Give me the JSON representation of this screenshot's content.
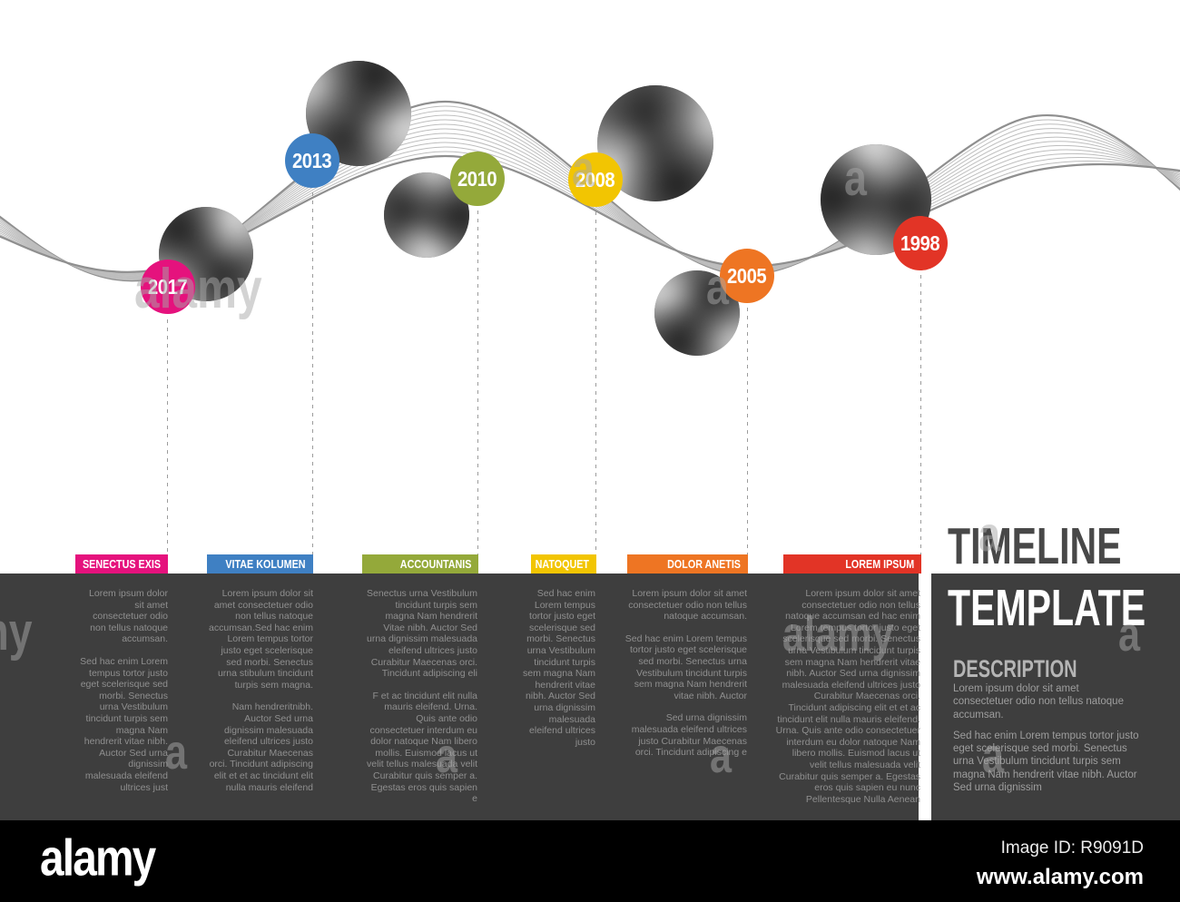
{
  "timeline": {
    "milestones": [
      {
        "year": "2017",
        "label": "SENECTUS EXIS",
        "color": "#e5127d",
        "paragraphs": [
          "Lorem ipsum dolor sit amet consectetuer odio non tellus natoque accumsan.",
          "Sed hac enim Lorem tempus tortor justo eget scelerisque sed morbi. Senectus urna Vestibulum tincidunt turpis sem magna Nam hendrerit vitae nibh. Auctor Sed urna dignissim malesuada eleifend ultrices just"
        ]
      },
      {
        "year": "2013",
        "label": "VITAE KOLUMEN",
        "color": "#3f80c3",
        "paragraphs": [
          "Lorem ipsum dolor sit amet consectetuer odio non tellus natoque accumsan.Sed hac enim Lorem tempus tortor justo eget scelerisque sed morbi. Senectus urna stibulum tincidunt turpis sem magna.",
          "Nam hendreritnibh. Auctor Sed urna dignissim malesuada eleifend ultrices justo Curabitur Maecenas orci. Tincidunt adipiscing elit et et ac tincidunt elit nulla mauris eleifend"
        ]
      },
      {
        "year": "2010",
        "label": "ACCOUNTANIS",
        "color": "#94a93a",
        "paragraphs": [
          "Senectus urna Vestibulum tincidunt turpis sem magna Nam hendrerit Vitae nibh. Auctor Sed urna dignissim malesuada eleifend ultrices justo Curabitur Maecenas orci. Tincidunt adipiscing eli",
          "F et ac tincidunt elit nulla mauris eleifend. Urna. Quis ante odio consectetuer interdum eu dolor natoque Nam libero mollis. Euismod lacus ut velit tellus malesuada velit Curabitur quis semper a. Egestas eros quis sapien e"
        ]
      },
      {
        "year": "2008",
        "label": "NATOQUET",
        "color": "#f2c502",
        "paragraphs": [
          "Sed hac enim Lorem tempus tortor justo eget scelerisque sed morbi. Senectus urna Vestibulum tincidunt turpis sem magna Nam hendrerit vitae nibh. Auctor Sed urna dignissim malesuada eleifend ultrices justo"
        ]
      },
      {
        "year": "2005",
        "label": "DOLOR ANETIS",
        "color": "#ee7523",
        "paragraphs": [
          "Lorem ipsum dolor sit amet consectetuer odio non tellus natoque accumsan.",
          "Sed hac enim Lorem tempus tortor justo eget scelerisque sed morbi. Senectus urna Vestibulum tincidunt turpis sem magna Nam hendrerit vitae nibh. Auctor",
          "Sed urna dignissim malesuada eleifend ultrices justo Curabitur Maecenas orci. Tincidunt adipiscing e"
        ]
      },
      {
        "year": "1998",
        "label": "LOREM IPSUM",
        "color": "#e23426",
        "paragraphs": [
          "Lorem ipsum dolor sit amet consectetuer odio non tellus natoque accumsan ed hac enim Lorem tempus tortor justo eget scelerisque sed morbi. Senectus urna Vestibulum tincidunt turpis sem magna Nam hendrerit vitae nibh. Auctor Sed urna dignissim malesuada eleifend ultrices justo Curabitur Maecenas orci. Tincidunt adipiscing elit et et ac tincidunt elit nulla mauris eleifend. Urna. Quis ante odio consectetuer interdum eu dolor natoque Nam libero mollis. Euismod lacus ut velit tellus malesuada velit Curabitur quis semper a. Egestas eros quis sapien eu nunc Pellentesque Nulla Aenean"
        ]
      }
    ]
  },
  "sidebar": {
    "title_line1": "TIMELINE",
    "title_line2": "TEMPLATE",
    "heading": "DESCRIPTION",
    "paragraphs": [
      "Lorem ipsum dolor sit amet consectetuer odio non tellus natoque accumsan.",
      "Sed hac enim Lorem tempus tortor justo eget scelerisque sed morbi. Senectus urna Vestibulum tincidunt turpis sem magna Nam hendrerit vitae nibh. Auctor Sed urna dignissim"
    ]
  },
  "footer": {
    "logo": "alamy",
    "image_id": "Image ID: R9091D",
    "url": "www.alamy.com"
  },
  "watermark": {
    "word": "alamy",
    "letter": "a"
  }
}
